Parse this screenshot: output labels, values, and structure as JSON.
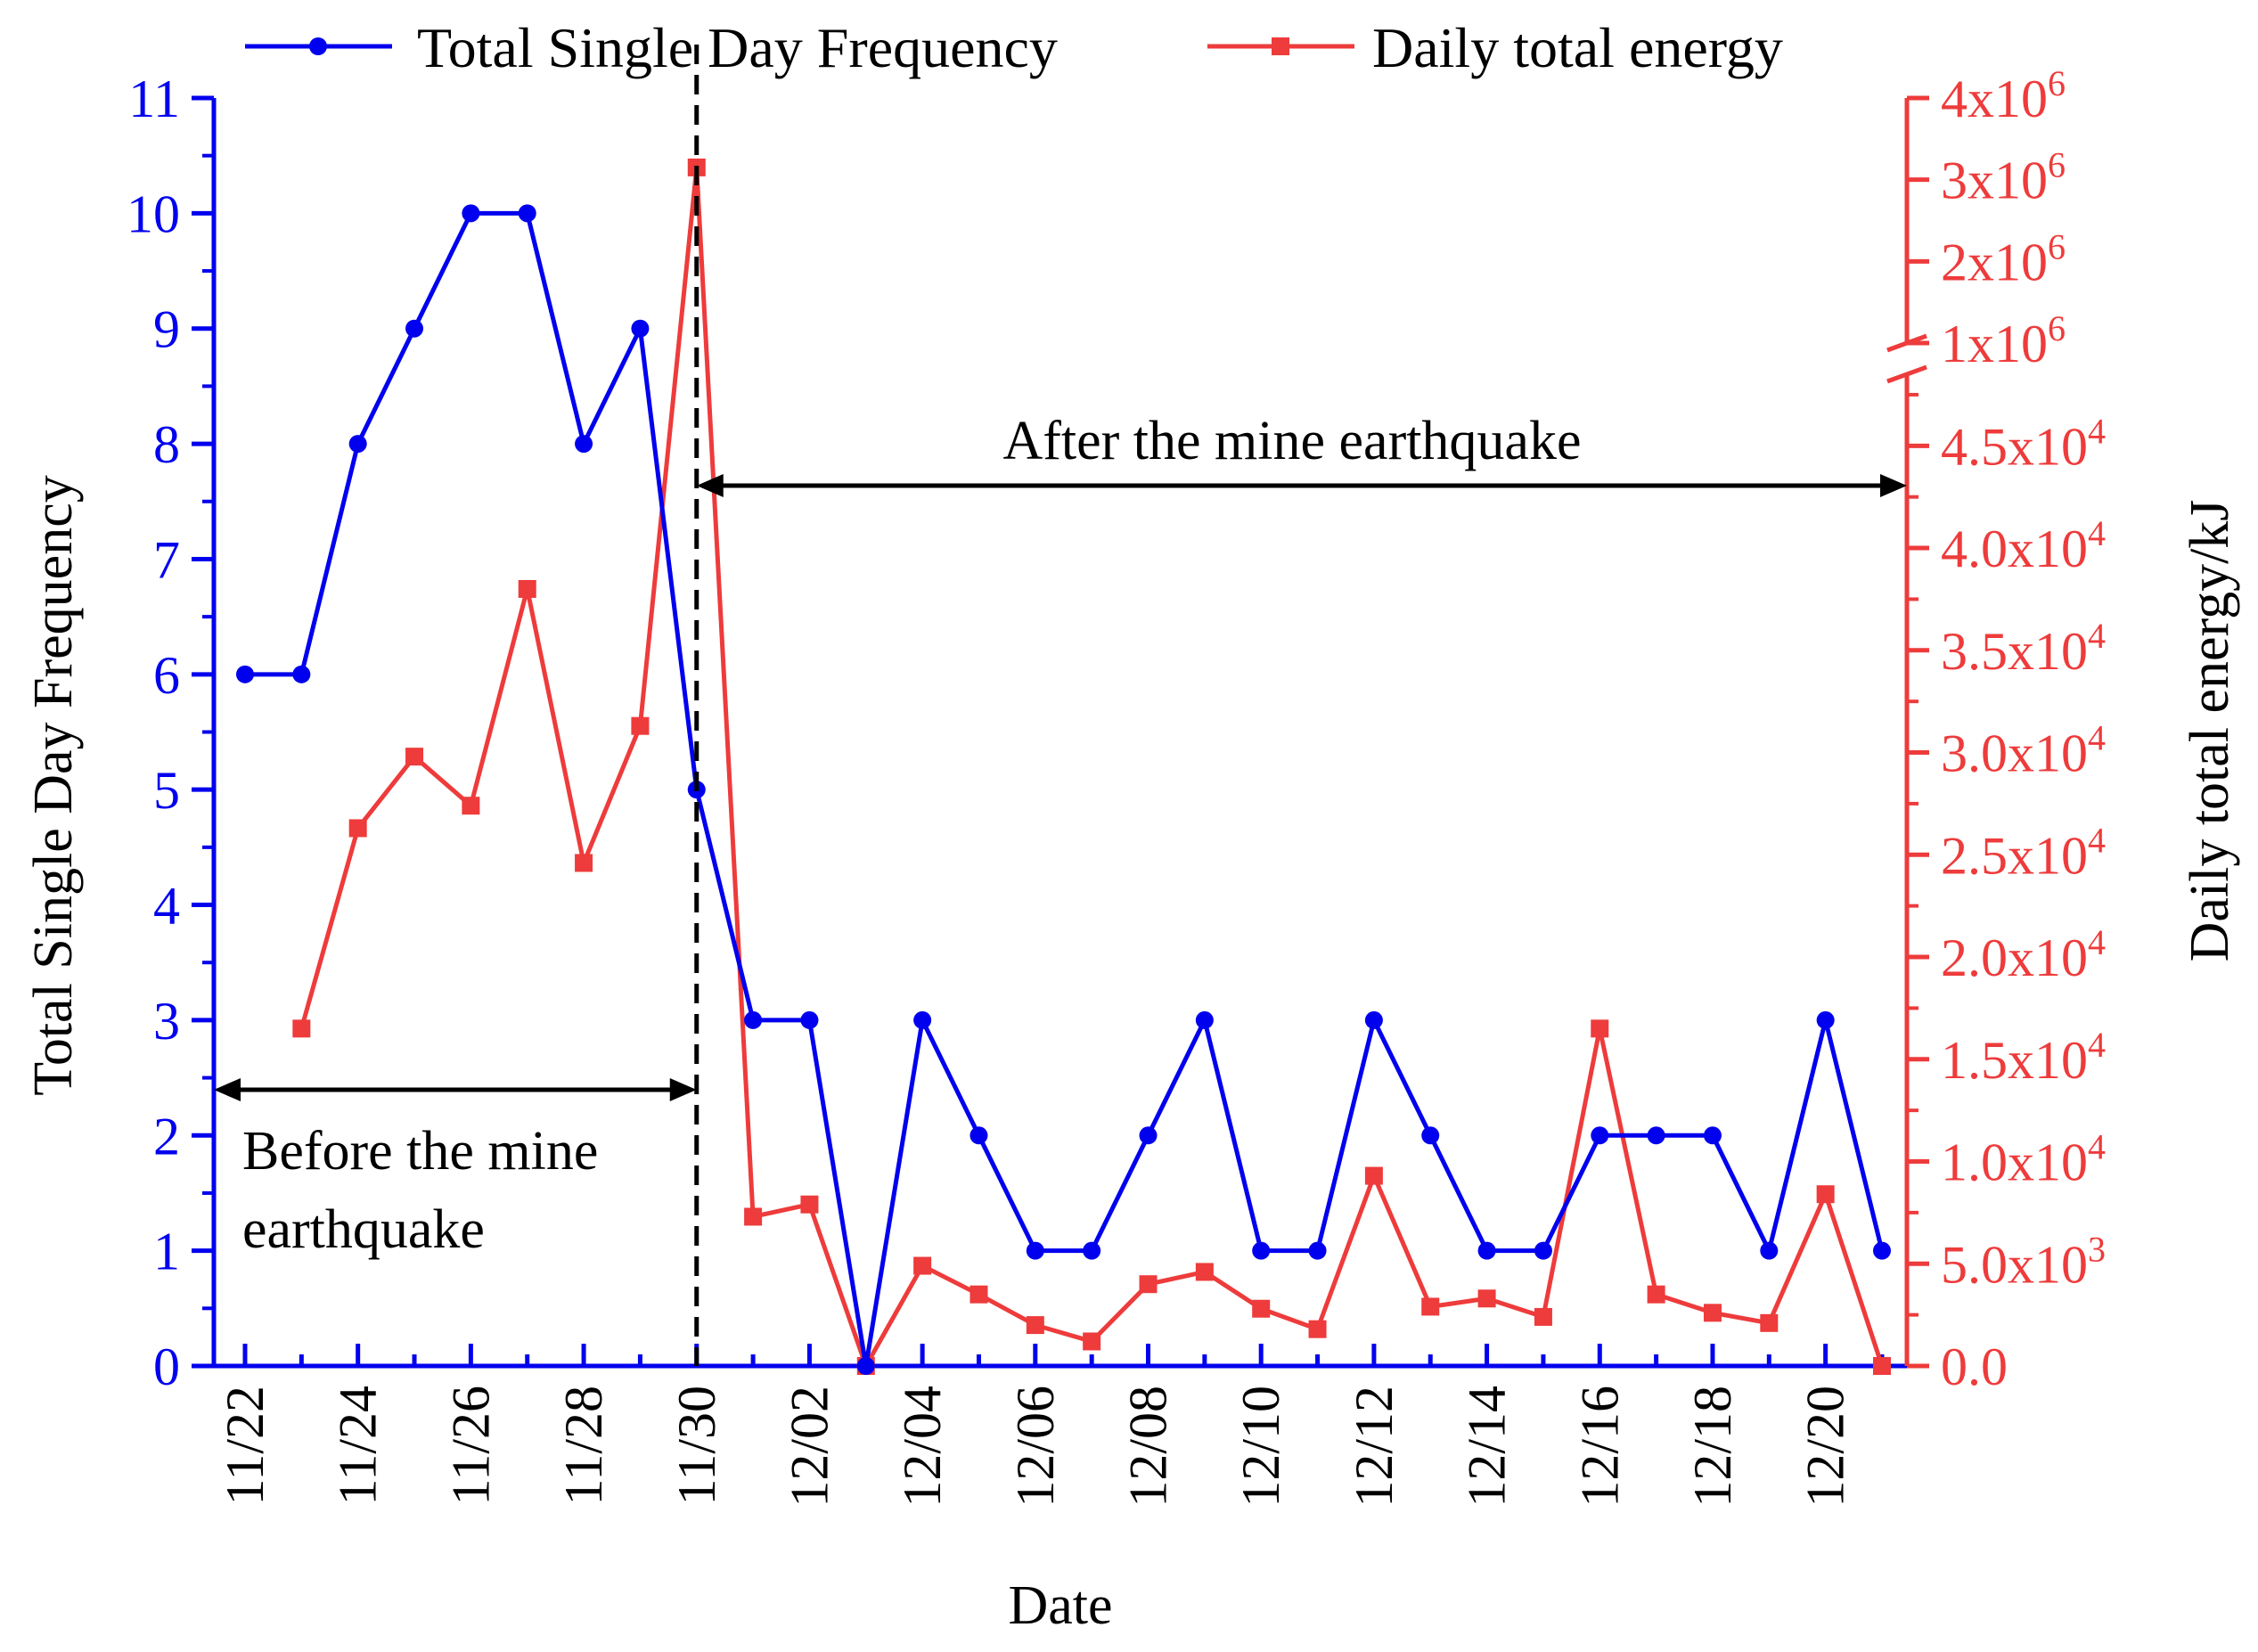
{
  "chart_data": {
    "type": "line",
    "title": "",
    "xlabel": "Date",
    "y1label": "Total Single Day Frequency",
    "y2label": "Daily total energy/kJ",
    "colors": {
      "frequency": "#0000ee",
      "energy": "#ee3b3b",
      "text": "#000000"
    },
    "categories": [
      "11/22",
      "11/23",
      "11/24",
      "11/25",
      "11/26",
      "11/27",
      "11/28",
      "11/29",
      "11/30",
      "12/01",
      "12/02",
      "12/03",
      "12/04",
      "12/05",
      "12/06",
      "12/07",
      "12/08",
      "12/09",
      "12/10",
      "12/11",
      "12/12",
      "12/13",
      "12/14",
      "12/15",
      "12/16",
      "12/17",
      "12/18",
      "12/19",
      "12/20",
      "12/21"
    ],
    "x_tick_labels": [
      "11/22",
      "11/24",
      "11/26",
      "11/28",
      "11/30",
      "12/02",
      "12/04",
      "12/06",
      "12/08",
      "12/10",
      "12/12",
      "12/14",
      "12/16",
      "12/18",
      "12/20"
    ],
    "y1_ticks": [
      "0",
      "1",
      "2",
      "3",
      "4",
      "5",
      "6",
      "7",
      "8",
      "9",
      "10",
      "11"
    ],
    "y1lim": [
      0,
      11
    ],
    "y2_ticks_lower": [
      {
        "m": "0.0",
        "e": ""
      },
      {
        "m": "5.0x10",
        "e": "3"
      },
      {
        "m": "1.0x10",
        "e": "4"
      },
      {
        "m": "1.5x10",
        "e": "4"
      },
      {
        "m": "2.0x10",
        "e": "4"
      },
      {
        "m": "2.5x10",
        "e": "4"
      },
      {
        "m": "3.0x10",
        "e": "4"
      },
      {
        "m": "3.5x10",
        "e": "4"
      },
      {
        "m": "4.0x10",
        "e": "4"
      },
      {
        "m": "4.5x10",
        "e": "4"
      }
    ],
    "y2_ticks_upper": [
      {
        "m": "1x10",
        "e": "6"
      },
      {
        "m": "2x10",
        "e": "6"
      },
      {
        "m": "3x10",
        "e": "6"
      },
      {
        "m": "4x10",
        "e": "6"
      }
    ],
    "y2lim_lower": [
      0,
      48500
    ],
    "y2lim_upper": [
      1000000,
      4000000
    ],
    "series": [
      {
        "name": "Total Single Day Frequency",
        "axis": "left",
        "marker": "circle",
        "values": [
          6,
          6,
          8,
          9,
          10,
          10,
          8,
          9,
          5,
          3,
          3,
          0,
          3,
          2,
          1,
          1,
          2,
          3,
          1,
          1,
          3,
          2,
          1,
          1,
          2,
          2,
          2,
          1,
          3,
          1
        ]
      },
      {
        "name": "Daily total energy",
        "axis": "right",
        "marker": "square",
        "values": [
          null,
          16500,
          26300,
          29800,
          27400,
          38000,
          24600,
          31300,
          3150000,
          7300,
          7900,
          0,
          4900,
          3500,
          2000,
          1200,
          4000,
          4600,
          2800,
          1800,
          9300,
          2900,
          3300,
          2400,
          16500,
          3500,
          2600,
          2100,
          8400,
          0
        ]
      }
    ],
    "legend": {
      "placement": "top",
      "items": [
        "Total Single Day Frequency",
        "Daily total energy"
      ]
    },
    "annotations": {
      "after": "After the mine earthquake",
      "before_line1": "Before the mine",
      "before_line2": "earthquake",
      "divider_date": "11/30"
    }
  }
}
